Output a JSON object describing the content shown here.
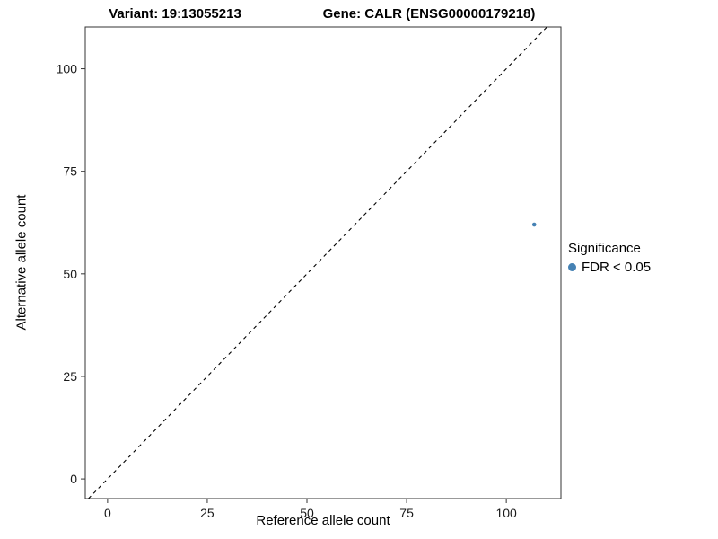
{
  "header": {
    "title_left": "Variant: 19:13055213",
    "title_right": "Gene: CALR (ENSG00000179218)"
  },
  "axes": {
    "x_label": "Reference allele count",
    "y_label": "Alternative allele count"
  },
  "legend": {
    "title": "Significance",
    "entries": [
      {
        "label": "FDR < 0.05",
        "color": "#4682B4"
      }
    ]
  },
  "chart_data": {
    "type": "scatter",
    "title": "Variant: 19:13055213   Gene: CALR (ENSG00000179218)",
    "xlabel": "Reference allele count",
    "ylabel": "Alternative allele count",
    "xlim": [
      -5.6,
      113.7
    ],
    "ylim": [
      -4.8,
      110.2
    ],
    "xticks": [
      0,
      25,
      50,
      75,
      100
    ],
    "yticks": [
      0,
      25,
      50,
      75,
      100
    ],
    "grid": false,
    "legend_position": "right",
    "series": [
      {
        "name": "FDR < 0.05",
        "color": "#4682B4",
        "point_radius": 2.3,
        "points": [
          {
            "x": 107,
            "y": 62
          }
        ]
      }
    ],
    "reference_line": {
      "type": "identity",
      "style": "dashed",
      "color": "#000000"
    },
    "panel_border_color": "#333333",
    "tick_color": "#333333",
    "tick_label_color": "#1a1a1a"
  }
}
